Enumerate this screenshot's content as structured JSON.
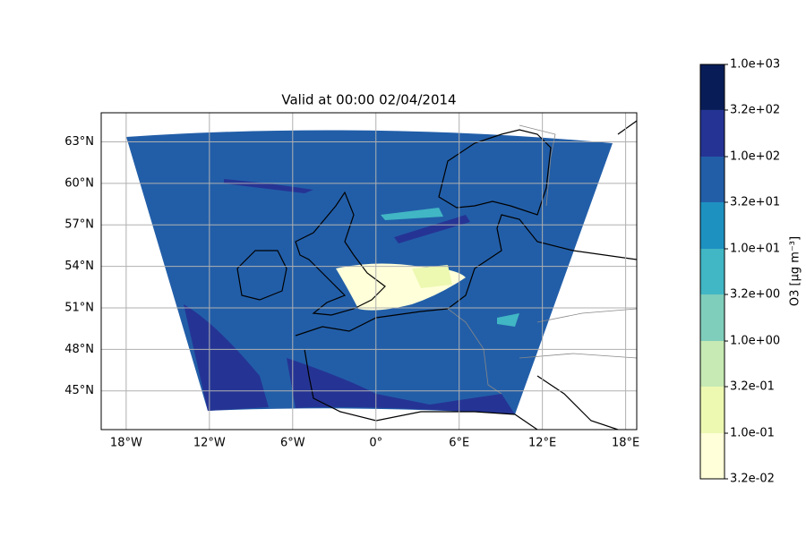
{
  "map": {
    "title": "Valid at 00:00 02/04/2014",
    "lonlim": [
      -19.8,
      18.8
    ],
    "latlim": [
      42.2,
      65.1
    ],
    "lonticks": [
      {
        "value": -18,
        "label": "18°W"
      },
      {
        "value": -12,
        "label": "12°W"
      },
      {
        "value": -6,
        "label": "6°W"
      },
      {
        "value": 0,
        "label": "0°"
      },
      {
        "value": 6,
        "label": "6°E"
      },
      {
        "value": 12,
        "label": "12°E"
      },
      {
        "value": 18,
        "label": "18°E"
      }
    ],
    "latticks": [
      {
        "value": 45,
        "label": "45°N"
      },
      {
        "value": 48,
        "label": "48°N"
      },
      {
        "value": 51,
        "label": "51°N"
      },
      {
        "value": 54,
        "label": "54°N"
      },
      {
        "value": 57,
        "label": "57°N"
      },
      {
        "value": 60,
        "label": "60°N"
      },
      {
        "value": 63,
        "label": "63°N"
      }
    ],
    "grid": true,
    "colorbar": {
      "label": "O3 [μg m⁻³]",
      "log": true,
      "boundaries": [
        {
          "value": 0.032,
          "label": "3.2e-02"
        },
        {
          "value": 0.1,
          "label": "1.0e-01"
        },
        {
          "value": 0.32,
          "label": "3.2e-01"
        },
        {
          "value": 1,
          "label": "1.0e+00"
        },
        {
          "value": 3.2,
          "label": "3.2e+00"
        },
        {
          "value": 10,
          "label": "1.0e+01"
        },
        {
          "value": 32,
          "label": "3.2e+01"
        },
        {
          "value": 100,
          "label": "1.0e+02"
        },
        {
          "value": 320,
          "label": "3.2e+02"
        },
        {
          "value": 1000,
          "label": "1.0e+03"
        }
      ],
      "colors": [
        "#ffffd9",
        "#edf8b1",
        "#c7e9b4",
        "#7fcdbb",
        "#41b6c4",
        "#1d91c0",
        "#225ea8",
        "#253494",
        "#081d58"
      ]
    }
  }
}
